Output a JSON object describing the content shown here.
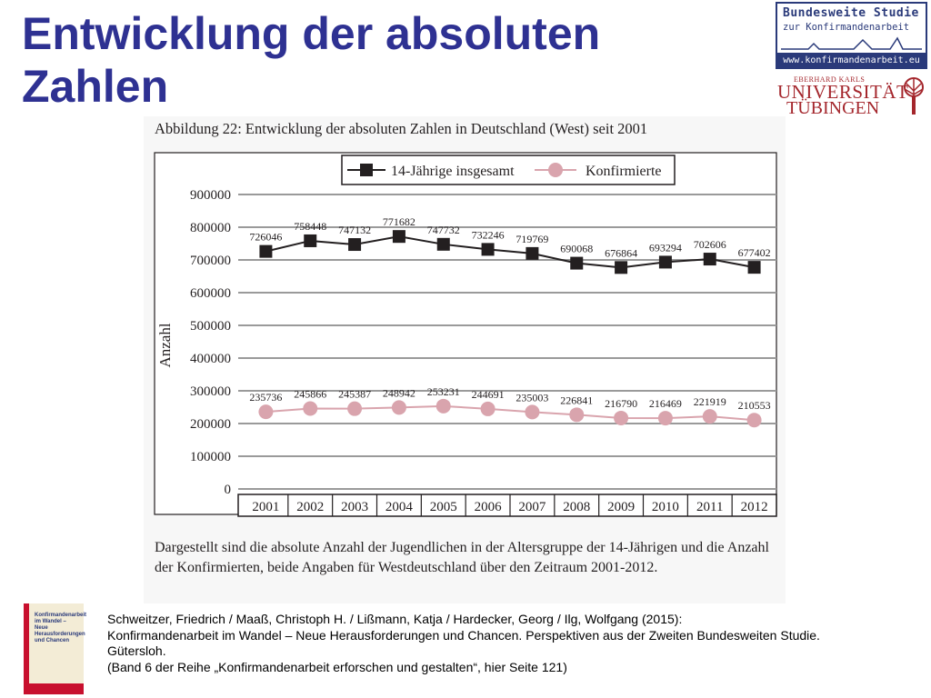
{
  "slide": {
    "title_line1": "Entwicklung der absoluten",
    "title_line2": "Zahlen"
  },
  "logo_bws": {
    "line1": "Bundesweite Studie",
    "line2": "zur Konfirmandenarbeit",
    "url": "www.konfirmandenarbeit.eu"
  },
  "logo_uni": {
    "line1": "EBERHARD KARLS",
    "line2": "UNIVERSITÄT",
    "line3": "TÜBINGEN"
  },
  "figure": {
    "caption": "Abbildung 22: Entwicklung der absoluten Zahlen in Deutschland (West) seit 2001",
    "description": "Dargestellt sind die absolute Anzahl der Jugendlichen in der Altersgruppe der 14-Jährigen und die Anzahl der Konfirmierten, beide Angaben für Westdeutschland über den Zeitraum 2001-2012."
  },
  "book_cover": {
    "title": "Konfirmandenarbeit im Wandel – Neue Herausforderungen und Chancen"
  },
  "reference": {
    "line1": "Schweitzer, Friedrich / Maaß, Christoph H. / Lißmann, Katja / Hardecker, Georg / Ilg, Wolfgang (2015):",
    "line2": "Konfirmandenarbeit im Wandel – Neue Herausforderungen und Chancen. Perspektiven aus der Zweiten Bundesweiten Studie.",
    "line3": "Gütersloh.",
    "line4": "(Band 6 der Reihe „Konfirmandenarbeit erforschen und gestalten“, hier Seite 121)"
  },
  "chart_data": {
    "type": "line",
    "title": "Abbildung 22: Entwicklung der absoluten Zahlen in Deutschland (West) seit 2001",
    "xlabel": "",
    "ylabel": "Anzahl",
    "ylim": [
      0,
      900000
    ],
    "yticks": [
      0,
      100000,
      200000,
      300000,
      400000,
      500000,
      600000,
      700000,
      800000,
      900000
    ],
    "grid": true,
    "legend_position": "top",
    "categories": [
      "2001",
      "2002",
      "2003",
      "2004",
      "2005",
      "2006",
      "2007",
      "2008",
      "2009",
      "2010",
      "2011",
      "2012"
    ],
    "series": [
      {
        "name": "14-Jährige insgesamt",
        "marker": "square",
        "color": "#231f20",
        "values": [
          726046,
          758448,
          747132,
          771682,
          747732,
          732246,
          719769,
          690068,
          676864,
          693294,
          702606,
          677402
        ]
      },
      {
        "name": "Konfirmierte",
        "marker": "circle",
        "color": "#d9a4ad",
        "values": [
          235736,
          245866,
          245387,
          248942,
          253231,
          244691,
          235003,
          226841,
          216790,
          216469,
          221919,
          210553
        ]
      }
    ]
  }
}
